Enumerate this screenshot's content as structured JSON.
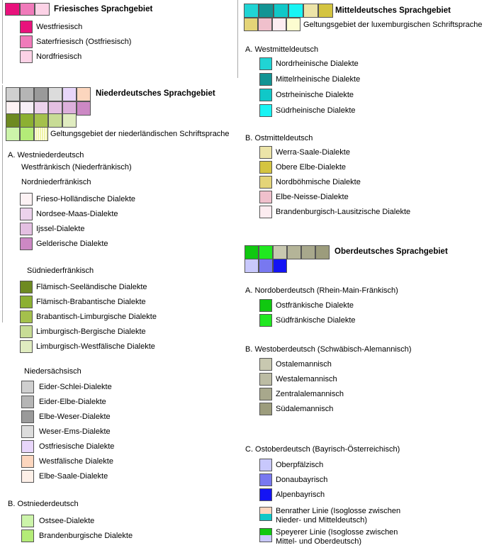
{
  "left": {
    "friesisch": {
      "title": "Friesisches Sprachgebiet",
      "header_colors": [
        "#e8127c",
        "#f07aba",
        "#fcd2e6"
      ],
      "items": [
        {
          "label": "Westfriesisch",
          "color": "#e8127c"
        },
        {
          "label": "Saterfriesisch (Ostfriesisch)",
          "color": "#f07aba"
        },
        {
          "label": "Nordfriesisch",
          "color": "#fcd2e6"
        }
      ]
    },
    "niederdeutsch": {
      "title": "Niederdeutsches Sprachgebiet",
      "header_row1": [
        "#cfcfcf",
        "#b5b5b5",
        "#9a9a9a",
        "#dcdcdc",
        "#e8d6fa",
        "#fcd6be"
      ],
      "header_row2": [
        "#fdf2f4",
        "#f6eef6",
        "#ecd2ec",
        "#e4c0e2",
        "#ddb0dc",
        "#cc88c4"
      ],
      "header_row3": [
        "#6e8a22",
        "#8cb032",
        "#a4c04c",
        "#c8dc96",
        "#e0ecc0"
      ],
      "header_row4": [
        "#ccf4aa",
        "#b4ec78",
        "#f0f4a8"
      ],
      "row4_label": "Geltungsgebiet der niederländischen Schriftsprache",
      "section_a": "A. Westniederdeutsch",
      "westfraenkisch": "Westfränkisch (Niederfränkisch)",
      "nordniederfraenkisch": {
        "title": "Nordniederfränkisch",
        "items": [
          {
            "label": "Frieso-Holländische Dialekte",
            "color": "#fdf2f4"
          },
          {
            "label": "Nordsee-Maas-Dialekte",
            "color": "#ecd2ec"
          },
          {
            "label": "Ijssel-Dialekte",
            "color": "#e4c0e2"
          },
          {
            "label": "Gelderische Dialekte",
            "color": "#cc88c4"
          }
        ]
      },
      "suedniederfraenkisch": {
        "title": "Südniederfränkisch",
        "items": [
          {
            "label": "Flämisch-Seeländische Dialekte",
            "color": "#6e8a22"
          },
          {
            "label": "Flämisch-Brabantische Dialekte",
            "color": "#8cb032"
          },
          {
            "label": "Brabantisch-Limburgische Dialekte",
            "color": "#a4c04c"
          },
          {
            "label": "Limburgisch-Bergische Dialekte",
            "color": "#c8dc96"
          },
          {
            "label": "Limburgisch-Westfälische Dialekte",
            "color": "#e0ecc0"
          }
        ]
      },
      "niedersaechsisch": {
        "title": "Niedersächsisch",
        "items": [
          {
            "label": "Eider-Schlei-Dialekte",
            "color": "#cfcfcf"
          },
          {
            "label": "Eider-Elbe-Dialekte",
            "color": "#b5b5b5"
          },
          {
            "label": "Elbe-Weser-Dialekte",
            "color": "#9a9a9a"
          },
          {
            "label": "Weser-Ems-Dialekte",
            "color": "#dcdcdc"
          },
          {
            "label": "Ostfriesische Dialekte",
            "color": "#e8d6fa"
          },
          {
            "label": "Westfälische Dialekte",
            "color": "#fcd6be"
          },
          {
            "label": "Elbe-Saale-Dialekte",
            "color": "#fdf0e8"
          }
        ]
      },
      "section_b": "B. Ostniederdeutsch",
      "ostniederdeutsch": [
        {
          "label": "Ostsee-Dialekte",
          "color": "#ccf4aa"
        },
        {
          "label": "Brandenburgische Dialekte",
          "color": "#b4ec78"
        }
      ]
    }
  },
  "right": {
    "mitteldeutsch": {
      "title": "Mitteldeutsches Sprachgebiet",
      "header_row1": [
        "#20d4d4",
        "#129494",
        "#10c8c8",
        "#18f4f4",
        "#ece4a8",
        "#d4c440"
      ],
      "header_row2": [
        "#e4d478",
        "#f0c0cc",
        "#fcecf0",
        "#fcfcd0"
      ],
      "row2_label": "Geltungsgebiet der luxemburgischen Schriftsprache",
      "section_a": "A. Westmitteldeutsch",
      "westmitteldeutsch": [
        {
          "label": "Nordrheinische Dialekte",
          "color": "#20d4d4"
        },
        {
          "label": "Mittelrheinische Dialekte",
          "color": "#129494"
        },
        {
          "label": "Ostrheinische Dialekte",
          "color": "#10c8c8"
        },
        {
          "label": "Südrheinische Dialekte",
          "color": "#18f4f4"
        }
      ],
      "section_b": "B. Ostmitteldeutsch",
      "ostmitteldeutsch": [
        {
          "label": "Werra-Saale-Dialekte",
          "color": "#ece4a8"
        },
        {
          "label": "Obere Elbe-Dialekte",
          "color": "#d4c440"
        },
        {
          "label": "Nordböhmische Dialekte",
          "color": "#e4d478"
        },
        {
          "label": "Elbe-Neisse-Dialekte",
          "color": "#f0c0cc"
        },
        {
          "label": "Brandenburgisch-Lausitzische Dialekte",
          "color": "#fcecf0"
        }
      ]
    },
    "oberdeutsch": {
      "title": "Oberdeutsches Sprachgebiet",
      "header_row1": [
        "#10c810",
        "#20e820",
        "#c8c8b0",
        "#b4b498",
        "#a8a88c",
        "#9c9c7c"
      ],
      "header_row2": [
        "#c8c8fc",
        "#7878f0",
        "#1414f4"
      ],
      "section_a": "A. Nordoberdeutsch  (Rhein-Main-Fränkisch)",
      "nordoberdeutsch": [
        {
          "label": "Ostfränkische Dialekte",
          "color": "#10c810"
        },
        {
          "label": "Südfränkische Dialekte",
          "color": "#20e820"
        }
      ],
      "section_b": "B. Westoberdeutsch (Schwäbisch-Alemannisch)",
      "westoberdeutsch": [
        {
          "label": "Ostalemannisch",
          "color": "#c8c8b0"
        },
        {
          "label": "Westalemannisch",
          "color": "#bcbca4"
        },
        {
          "label": "Zentralalemannisch",
          "color": "#a8a88c"
        },
        {
          "label": "Südalemannisch",
          "color": "#9c9c7c"
        }
      ],
      "section_c": "C. Ostoberdeutsch (Bayrisch-Österreichisch)",
      "ostoberdeutsch": [
        {
          "label": "Oberpfälzisch",
          "color": "#c8c8fc"
        },
        {
          "label": "Donaubayrisch",
          "color": "#7878f0"
        },
        {
          "label": "Alpenbayrisch",
          "color": "#1414f4"
        }
      ],
      "benrather": {
        "line1": "Benrather Linie (Isoglosse zwischen",
        "line2": "Nieder- und Mitteldeutsch)",
        "top": "#fcd6be",
        "bottom": "#10c8c8"
      },
      "speyerer": {
        "line1": "Speyerer Linie (Isoglosse zwischen",
        "line2": "Mittel- und Oberdeutsch)",
        "top": "#10c810",
        "bottom": "#c8c8fc"
      }
    }
  }
}
